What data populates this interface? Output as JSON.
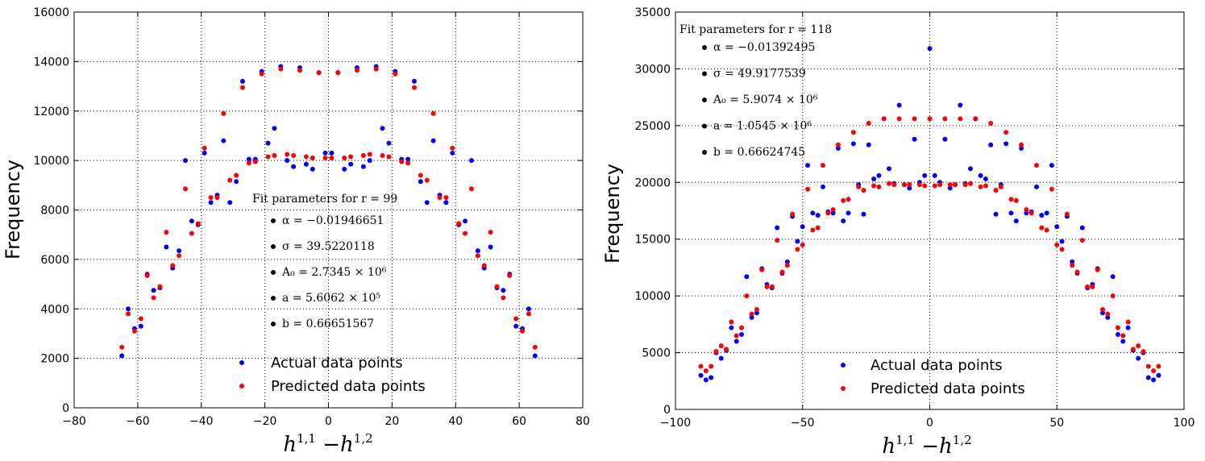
{
  "chart_data": [
    {
      "type": "scatter",
      "title": "",
      "xlabel": "h^{1,1} − h^{1,2}",
      "ylabel": "Frequency",
      "xlim": [
        -80,
        80
      ],
      "ylim": [
        0,
        16000
      ],
      "xticks": [
        -80,
        -60,
        -40,
        -20,
        0,
        20,
        40,
        60,
        80
      ],
      "yticks": [
        0,
        2000,
        4000,
        6000,
        8000,
        10000,
        12000,
        14000,
        16000
      ],
      "xtick_labels": [
        "−80",
        "−60",
        "−40",
        "−20",
        "0",
        "20",
        "40",
        "60",
        "80"
      ],
      "ytick_labels": [
        "0",
        "2000",
        "4000",
        "6000",
        "8000",
        "10000",
        "12000",
        "14000",
        "16000"
      ],
      "grid": true,
      "legend": {
        "position": "lower-center",
        "entries": [
          "Actual data points",
          "Predicted data points"
        ]
      },
      "annotation": {
        "title": "Fit parameters for r = 99",
        "items": [
          "α = −0.01946651",
          "σ = 39.5220118",
          "A₀ = 2.7345 × 10⁶",
          "a = 5.6062 × 10⁵",
          "b = 0.66651567"
        ]
      },
      "series": [
        {
          "name": "Actual data points",
          "color": "#0000ff",
          "x": [
            -65,
            -63,
            -61,
            -59,
            -57,
            -55,
            -53,
            -51,
            -49,
            -47,
            -45,
            -43,
            -41,
            -39,
            -37,
            -35,
            -33,
            -31,
            -29,
            -27,
            -25,
            -23,
            -21,
            -19,
            -17,
            -15,
            -13,
            -11,
            -9,
            -7,
            -5,
            -3,
            -1,
            1,
            3,
            5,
            7,
            9,
            11,
            13,
            15,
            17,
            19,
            21,
            23,
            25,
            27,
            29,
            31,
            33,
            35,
            37,
            39,
            41,
            43,
            45,
            47,
            49,
            51,
            53,
            55,
            57,
            59,
            61,
            63,
            65
          ],
          "y": [
            2100,
            4000,
            3200,
            3300,
            5400,
            4750,
            4850,
            6500,
            5650,
            6350,
            10000,
            7550,
            7400,
            10300,
            8300,
            8600,
            10800,
            8300,
            9150,
            13200,
            10050,
            10050,
            13600,
            10700,
            11300,
            13800,
            10000,
            9750,
            13750,
            9850,
            9650,
            13550,
            10300,
            10300,
            13550,
            9650,
            9850,
            13750,
            9750,
            10000,
            13800,
            11300,
            10700,
            13600,
            10050,
            10050,
            13200,
            9150,
            8300,
            10800,
            8600,
            8300,
            10300,
            7400,
            7550,
            10000,
            6350,
            5650,
            6500,
            4850,
            4750,
            5400,
            3300,
            3200,
            4000,
            2100
          ]
        },
        {
          "name": "Predicted data points",
          "color": "#ff0000",
          "x": [
            -65,
            -63,
            -61,
            -59,
            -57,
            -55,
            -53,
            -51,
            -49,
            -47,
            -45,
            -43,
            -41,
            -39,
            -37,
            -35,
            -33,
            -31,
            -29,
            -27,
            -25,
            -23,
            -21,
            -19,
            -17,
            -15,
            -13,
            -11,
            -9,
            -7,
            -5,
            -3,
            -1,
            1,
            3,
            5,
            7,
            9,
            11,
            13,
            15,
            17,
            19,
            21,
            23,
            25,
            27,
            29,
            31,
            33,
            35,
            37,
            39,
            41,
            43,
            45,
            47,
            49,
            51,
            53,
            55,
            57,
            59,
            61,
            63,
            65
          ],
          "y": [
            2450,
            3800,
            3100,
            3600,
            5350,
            4450,
            4900,
            7100,
            5750,
            6150,
            8850,
            7050,
            7450,
            10500,
            8500,
            8500,
            11900,
            9200,
            9400,
            12950,
            9900,
            9950,
            13500,
            10150,
            10200,
            13700,
            10250,
            10200,
            13650,
            10150,
            10100,
            13550,
            10100,
            10100,
            13550,
            10100,
            10150,
            13650,
            10200,
            10250,
            13700,
            10200,
            10150,
            13500,
            9950,
            9900,
            12950,
            9400,
            9200,
            11900,
            8500,
            8500,
            10500,
            7450,
            7050,
            8850,
            6150,
            5750,
            7100,
            4900,
            4450,
            5350,
            3600,
            3100,
            3800,
            2450
          ]
        }
      ]
    },
    {
      "type": "scatter",
      "title": "",
      "xlabel": "h^{1,1} − h^{1,2}",
      "ylabel": "Frequency",
      "xlim": [
        -100,
        100
      ],
      "ylim": [
        0,
        35000
      ],
      "xticks": [
        -100,
        -50,
        0,
        50,
        100
      ],
      "yticks": [
        0,
        5000,
        10000,
        15000,
        20000,
        25000,
        30000,
        35000
      ],
      "xtick_labels": [
        "−100",
        "−50",
        "0",
        "50",
        "100"
      ],
      "ytick_labels": [
        "0",
        "5000",
        "10000",
        "15000",
        "20000",
        "25000",
        "30000",
        "35000"
      ],
      "grid": true,
      "legend": {
        "position": "lower-center",
        "entries": [
          "Actual data points",
          "Predicted data points"
        ]
      },
      "annotation": {
        "title": "Fit parameters for r = 118",
        "items": [
          "α = −0.01392495",
          "σ = 49.9177539",
          "A₀ = 5.9074 × 10⁶",
          "a = 1.0545 × 10⁶",
          "b = 0.66624745"
        ]
      },
      "series": [
        {
          "name": "Actual data points",
          "color": "#0000ff",
          "x": [
            -90,
            -88,
            -86,
            -84,
            -82,
            -80,
            -78,
            -76,
            -74,
            -72,
            -70,
            -68,
            -66,
            -64,
            -62,
            -60,
            -58,
            -56,
            -54,
            -52,
            -50,
            -48,
            -46,
            -44,
            -42,
            -40,
            -38,
            -36,
            -34,
            -32,
            -30,
            -28,
            -26,
            -24,
            -22,
            -20,
            -18,
            -16,
            -14,
            -12,
            -10,
            -8,
            -6,
            -4,
            -2,
            0,
            2,
            4,
            6,
            8,
            10,
            12,
            14,
            16,
            18,
            20,
            22,
            24,
            26,
            28,
            30,
            32,
            34,
            36,
            38,
            40,
            42,
            44,
            46,
            48,
            50,
            52,
            54,
            56,
            58,
            60,
            62,
            64,
            66,
            68,
            70,
            72,
            74,
            76,
            78,
            80,
            82,
            84,
            86,
            88,
            90
          ],
          "y": [
            3000,
            2600,
            2800,
            5000,
            4500,
            5200,
            7200,
            6000,
            6600,
            11700,
            8100,
            8500,
            12400,
            11000,
            10700,
            16000,
            12000,
            13000,
            17000,
            14800,
            16100,
            21500,
            17300,
            17100,
            19600,
            17400,
            17300,
            23000,
            16600,
            17300,
            23400,
            19800,
            17200,
            23300,
            20300,
            20600,
            25600,
            21200,
            19900,
            26800,
            19800,
            19500,
            23800,
            20000,
            20600,
            31800,
            20600,
            20000,
            23800,
            19500,
            19800,
            26800,
            19900,
            21200,
            25600,
            20600,
            20300,
            23300,
            17200,
            19800,
            23400,
            17300,
            16600,
            23000,
            17300,
            17400,
            19600,
            17100,
            17300,
            21500,
            16100,
            14800,
            17000,
            13000,
            12000,
            16000,
            10700,
            11000,
            12400,
            8500,
            8100,
            11700,
            6600,
            6000,
            7200,
            5200,
            4500,
            5000,
            2800,
            2600,
            3000
          ]
        },
        {
          "name": "Predicted data points",
          "color": "#ff0000",
          "x": [
            -90,
            -88,
            -86,
            -84,
            -82,
            -80,
            -78,
            -76,
            -74,
            -72,
            -70,
            -68,
            -66,
            -64,
            -62,
            -60,
            -58,
            -56,
            -54,
            -52,
            -50,
            -48,
            -46,
            -44,
            -42,
            -40,
            -38,
            -36,
            -34,
            -32,
            -30,
            -28,
            -26,
            -24,
            -22,
            -20,
            -18,
            -16,
            -14,
            -12,
            -10,
            -8,
            -6,
            -4,
            -2,
            0,
            2,
            4,
            6,
            8,
            10,
            12,
            14,
            16,
            18,
            20,
            22,
            24,
            26,
            28,
            30,
            32,
            34,
            36,
            38,
            40,
            42,
            44,
            46,
            48,
            50,
            52,
            54,
            56,
            58,
            60,
            62,
            64,
            66,
            68,
            70,
            72,
            74,
            76,
            78,
            80,
            82,
            84,
            86,
            88,
            90
          ],
          "y": [
            3800,
            3400,
            3800,
            5100,
            5600,
            5300,
            7700,
            6500,
            7200,
            10000,
            8400,
            8800,
            12300,
            10800,
            10800,
            14900,
            12100,
            12700,
            17200,
            14100,
            14500,
            19400,
            15800,
            16000,
            21500,
            17300,
            17600,
            23300,
            18400,
            18500,
            24400,
            19600,
            19300,
            25200,
            19700,
            19600,
            25600,
            19900,
            19800,
            25600,
            19800,
            19800,
            25600,
            19800,
            19700,
            25600,
            19700,
            19800,
            25600,
            19800,
            19800,
            25600,
            19800,
            19900,
            25600,
            19600,
            19700,
            25200,
            19300,
            19600,
            24400,
            18500,
            18400,
            23300,
            17600,
            17300,
            21500,
            16000,
            15800,
            19400,
            14500,
            14100,
            17200,
            12700,
            12100,
            14900,
            10800,
            10800,
            12300,
            8800,
            8400,
            10000,
            7200,
            6500,
            7700,
            5300,
            5600,
            5100,
            3800,
            3400,
            3800
          ]
        }
      ]
    }
  ]
}
